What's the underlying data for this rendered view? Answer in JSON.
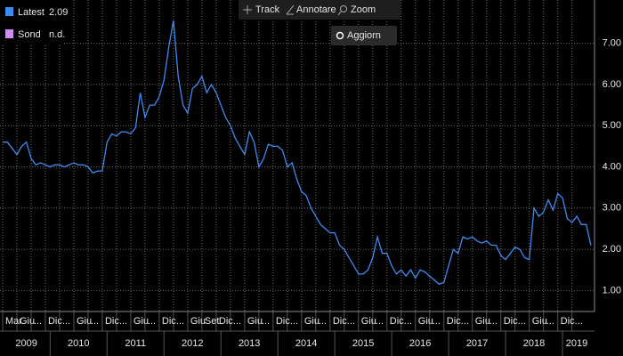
{
  "toolbar": {
    "track": "Track",
    "annotate": "Annotare",
    "zoom": "Zoom",
    "refresh": "Aggiorn"
  },
  "chart_data": {
    "type": "line",
    "grid": true,
    "legend": "top-left",
    "y_axis_side": "right",
    "x": [
      "2009-03",
      "2009-04",
      "2009-05",
      "2009-06",
      "2009-07",
      "2009-08",
      "2009-09",
      "2009-10",
      "2009-11",
      "2009-12",
      "2010-01",
      "2010-02",
      "2010-03",
      "2010-04",
      "2010-05",
      "2010-06",
      "2010-07",
      "2010-08",
      "2010-09",
      "2010-10",
      "2010-11",
      "2010-12",
      "2011-01",
      "2011-02",
      "2011-03",
      "2011-04",
      "2011-05",
      "2011-06",
      "2011-07",
      "2011-08",
      "2011-09",
      "2011-10",
      "2011-11",
      "2011-12",
      "2012-01",
      "2012-02",
      "2012-03",
      "2012-04",
      "2012-05",
      "2012-06",
      "2012-07",
      "2012-08",
      "2012-09",
      "2012-10",
      "2012-11",
      "2012-12",
      "2013-01",
      "2013-02",
      "2013-03",
      "2013-04",
      "2013-05",
      "2013-06",
      "2013-07",
      "2013-08",
      "2013-09",
      "2013-10",
      "2013-11",
      "2013-12",
      "2014-01",
      "2014-02",
      "2014-03",
      "2014-04",
      "2014-05",
      "2014-06",
      "2014-07",
      "2014-08",
      "2014-09",
      "2014-10",
      "2014-11",
      "2014-12",
      "2015-01",
      "2015-02",
      "2015-03",
      "2015-04",
      "2015-05",
      "2015-06",
      "2015-07",
      "2015-08",
      "2015-09",
      "2015-10",
      "2015-11",
      "2015-12",
      "2016-01",
      "2016-02",
      "2016-03",
      "2016-04",
      "2016-05",
      "2016-06",
      "2016-07",
      "2016-08",
      "2016-09",
      "2016-10",
      "2016-11",
      "2016-12",
      "2017-01",
      "2017-02",
      "2017-03",
      "2017-04",
      "2017-05",
      "2017-06",
      "2017-07",
      "2017-08",
      "2017-09",
      "2017-10",
      "2017-11",
      "2017-12",
      "2018-01",
      "2018-02",
      "2018-03",
      "2018-04",
      "2018-05",
      "2018-06",
      "2018-07",
      "2018-08",
      "2018-09",
      "2018-10",
      "2018-11",
      "2018-12",
      "2019-01",
      "2019-02",
      "2019-03",
      "2019-04",
      "2019-05",
      "2019-06",
      "2019-07"
    ],
    "series": [
      {
        "name": "Latest",
        "color": "#3d8bf0",
        "values": [
          4.6,
          4.6,
          4.45,
          4.3,
          4.5,
          4.6,
          4.2,
          4.05,
          4.1,
          4.05,
          4.0,
          4.05,
          4.05,
          4.0,
          4.05,
          4.1,
          4.05,
          4.05,
          4.0,
          3.85,
          3.9,
          3.9,
          4.6,
          4.8,
          4.75,
          4.85,
          4.85,
          4.8,
          4.95,
          5.8,
          5.2,
          5.5,
          5.5,
          5.7,
          6.1,
          6.9,
          7.55,
          6.2,
          5.5,
          5.3,
          5.9,
          6.0,
          6.2,
          5.8,
          6.0,
          5.8,
          5.5,
          5.2,
          5.0,
          4.7,
          4.5,
          4.3,
          4.85,
          4.6,
          4.0,
          4.2,
          4.55,
          4.5,
          4.5,
          4.4,
          4.0,
          4.1,
          3.7,
          3.4,
          3.3,
          3.0,
          2.8,
          2.6,
          2.5,
          2.4,
          2.4,
          2.1,
          2.0,
          1.8,
          1.6,
          1.4,
          1.4,
          1.5,
          1.8,
          2.3,
          1.9,
          1.9,
          1.6,
          1.4,
          1.5,
          1.35,
          1.5,
          1.3,
          1.5,
          1.45,
          1.35,
          1.25,
          1.15,
          1.2,
          1.6,
          2.0,
          1.9,
          2.3,
          2.25,
          2.3,
          2.2,
          2.15,
          2.2,
          2.1,
          2.1,
          1.85,
          1.75,
          1.9,
          2.05,
          2.0,
          1.8,
          1.75,
          3.0,
          2.8,
          2.9,
          3.2,
          2.95,
          3.35,
          3.25,
          2.75,
          2.65,
          2.8,
          2.6,
          2.6,
          2.09
        ]
      },
      {
        "name": "Sond",
        "color": "#cf8cf2",
        "label": "n.d."
      }
    ],
    "xlim": [
      "2009-03",
      "2019-07"
    ],
    "xticks": [
      {
        "value": "2009-03",
        "label": "Mar"
      },
      {
        "value": "2009-06",
        "label": "Giu"
      },
      {
        "value": "2009-09",
        "label": "..."
      },
      {
        "value": "2009-12",
        "label": "Dic"
      },
      {
        "value": "2010-03",
        "label": "..."
      },
      {
        "value": "2010-06",
        "label": "Giu"
      },
      {
        "value": "2010-09",
        "label": "..."
      },
      {
        "value": "2010-12",
        "label": "Dic"
      },
      {
        "value": "2011-03",
        "label": "..."
      },
      {
        "value": "2011-06",
        "label": "Giu"
      },
      {
        "value": "2011-09",
        "label": "..."
      },
      {
        "value": "2011-12",
        "label": "Dic"
      },
      {
        "value": "2012-03",
        "label": "..."
      },
      {
        "value": "2012-06",
        "label": "Giu"
      },
      {
        "value": "2012-09",
        "label": "Set"
      },
      {
        "value": "2012-12",
        "label": "Dic"
      },
      {
        "value": "2013-03",
        "label": "..."
      },
      {
        "value": "2013-06",
        "label": "Giu"
      },
      {
        "value": "2013-09",
        "label": "..."
      },
      {
        "value": "2013-12",
        "label": "Dic"
      },
      {
        "value": "2014-03",
        "label": "..."
      },
      {
        "value": "2014-06",
        "label": "Giu"
      },
      {
        "value": "2014-09",
        "label": "..."
      },
      {
        "value": "2014-12",
        "label": "Dic"
      },
      {
        "value": "2015-03",
        "label": "..."
      },
      {
        "value": "2015-06",
        "label": "Giu"
      },
      {
        "value": "2015-09",
        "label": "..."
      },
      {
        "value": "2015-12",
        "label": "Dic"
      },
      {
        "value": "2016-03",
        "label": "..."
      },
      {
        "value": "2016-06",
        "label": "Giu"
      },
      {
        "value": "2016-09",
        "label": "..."
      },
      {
        "value": "2016-12",
        "label": "Dic"
      },
      {
        "value": "2017-03",
        "label": "..."
      },
      {
        "value": "2017-06",
        "label": "Giu"
      },
      {
        "value": "2017-09",
        "label": "..."
      },
      {
        "value": "2017-12",
        "label": "Dic"
      },
      {
        "value": "2018-03",
        "label": "..."
      },
      {
        "value": "2018-06",
        "label": "Giu"
      },
      {
        "value": "2018-09",
        "label": "..."
      },
      {
        "value": "2018-12",
        "label": "Dic"
      },
      {
        "value": "2019-03",
        "label": "..."
      }
    ],
    "years": [
      "2009",
      "2010",
      "2011",
      "2012",
      "2013",
      "2014",
      "2015",
      "2016",
      "2017",
      "2018",
      "2019"
    ],
    "ylim": [
      0.49,
      8.05
    ],
    "yticks": [
      {
        "value": 1,
        "label": "1.00"
      },
      {
        "value": 2,
        "label": "2.00"
      },
      {
        "value": 3,
        "label": "3.00"
      },
      {
        "value": 4,
        "label": "4.00"
      },
      {
        "value": 5,
        "label": "5.00"
      },
      {
        "value": 6,
        "label": "6.00"
      },
      {
        "value": 7,
        "label": "7.00"
      }
    ]
  }
}
